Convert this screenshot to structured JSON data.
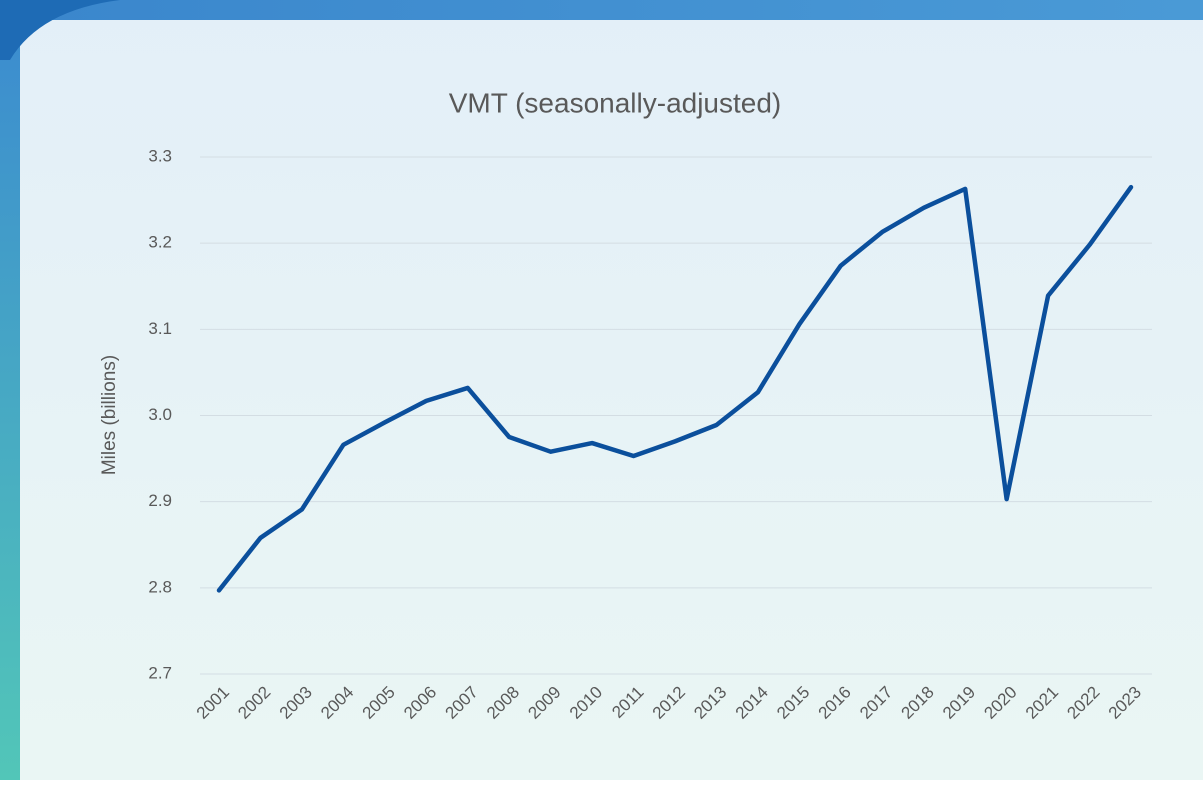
{
  "chart_data": {
    "type": "line",
    "title": "VMT (seasonally-adjusted)",
    "y_label": "Miles (billions)",
    "categories": [
      "2001",
      "2002",
      "2003",
      "2004",
      "2005",
      "2006",
      "2007",
      "2008",
      "2009",
      "2010",
      "2011",
      "2012",
      "2013",
      "2014",
      "2015",
      "2016",
      "2017",
      "2018",
      "2019",
      "2020",
      "2021",
      "2022",
      "2023"
    ],
    "series": [
      {
        "name": "VMT",
        "color": "#0b4f9c",
        "values": [
          2.797,
          2.858,
          2.891,
          2.966,
          2.992,
          3.017,
          3.032,
          2.975,
          2.958,
          2.968,
          2.953,
          2.97,
          2.989,
          3.027,
          3.106,
          3.174,
          3.213,
          3.241,
          3.263,
          2.903,
          3.139,
          3.198,
          3.265
        ]
      }
    ],
    "ylim": [
      2.7,
      3.3
    ],
    "yticks": [
      2.7,
      2.8,
      2.9,
      {
        "value": 3,
        "label": "3.0"
      },
      3.1,
      3.2,
      3.3
    ],
    "grid": true
  }
}
